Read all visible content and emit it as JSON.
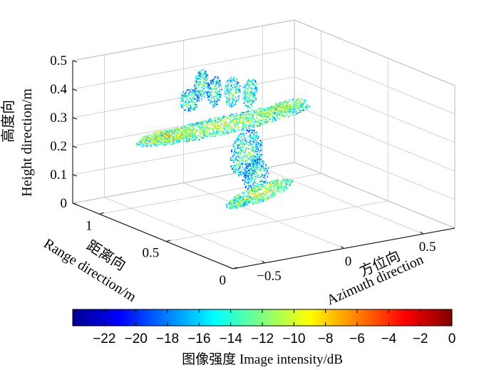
{
  "chart_data": {
    "type": "scatter",
    "projection": "3d",
    "description_type": "3D radar image point cloud of an aircraft model",
    "axes": {
      "azimuth": {
        "label_cn": "方位向",
        "label_en": "Azimuth direction",
        "ticks": [
          "−0.5",
          "0",
          "0.5"
        ],
        "range": [
          -0.7,
          0.7
        ]
      },
      "range": {
        "label_cn": "距离向",
        "label_en": "Range direction/m",
        "ticks": [
          "0",
          "0.5",
          "1"
        ],
        "range": [
          0,
          1.2
        ]
      },
      "height": {
        "label_cn": "高度向",
        "label_en": "Height direction/m",
        "ticks": [
          "0",
          "0.1",
          "0.2",
          "0.3",
          "0.4",
          "0.5"
        ],
        "range": [
          0,
          0.5
        ]
      }
    },
    "colorbar": {
      "colormap": "jet",
      "range": [
        -24,
        0
      ],
      "ticks": [
        "−22",
        "−20",
        "−18",
        "−16",
        "−14",
        "−12",
        "−10",
        "−8",
        "−6",
        "−4",
        "−2",
        "0"
      ],
      "label": "图像强度 Image intensity/dB"
    },
    "grid": true
  }
}
